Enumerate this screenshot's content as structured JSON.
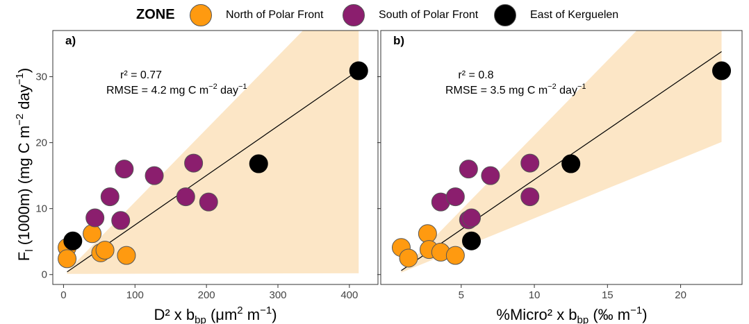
{
  "legend": {
    "title": "ZONE",
    "items": [
      {
        "label": "North of Polar Front",
        "color": "#FF9A10"
      },
      {
        "label": "South of Polar Front",
        "color": "#8B1E6E"
      },
      {
        "label": "East of Kerguelen",
        "color": "#000000"
      }
    ]
  },
  "y_axis": {
    "label_main": "F",
    "label_sub": "l",
    "label_rest": " (1000m) (mg C m",
    "label_exp1": "−2",
    "label_mid": " day",
    "label_exp2": "−1",
    "label_end": ")"
  },
  "band_color": "#FCE6C6",
  "chart_data": [
    {
      "type": "scatter",
      "panel_label": "a)",
      "xlabel": {
        "main": "D² x b",
        "sub": "bp",
        "rest": " (μm",
        "exp1": "2",
        "mid": " m",
        "exp2": "−1",
        "end": ")"
      },
      "xlim": [
        -15,
        440
      ],
      "ylim": [
        -1.5,
        37
      ],
      "xticks": [
        0,
        100,
        200,
        300,
        400
      ],
      "yticks": [
        0,
        10,
        20,
        30
      ],
      "grid": false,
      "annotation": {
        "r2": "r² = 0.77",
        "rmse_prefix": "RMSE = 4.2 mg C m",
        "rmse_exp1": "−2",
        "rmse_mid": " day",
        "rmse_exp2": "−1"
      },
      "fit_line": {
        "x": [
          5,
          413
        ],
        "y": [
          0.4,
          31
        ]
      },
      "band": {
        "upper": [
          [
            5,
            0.5
          ],
          [
            335,
            37
          ],
          [
            413,
            37
          ]
        ],
        "lower": [
          [
            413,
            0.2
          ],
          [
            5,
            0.1
          ]
        ]
      },
      "series": [
        {
          "name": "North of Polar Front",
          "color": "#FF9A10",
          "points": [
            [
              5,
              4.1
            ],
            [
              5,
              2.4
            ],
            [
              40,
              6.2
            ],
            [
              52,
              3.3
            ],
            [
              58,
              3.7
            ],
            [
              88,
              2.9
            ]
          ]
        },
        {
          "name": "South of Polar Front",
          "color": "#8B1E6E",
          "points": [
            [
              44,
              8.6
            ],
            [
              65,
              11.8
            ],
            [
              80,
              8.2
            ],
            [
              85,
              16.0
            ],
            [
              127,
              15.0
            ],
            [
              171,
              11.8
            ],
            [
              182,
              16.9
            ],
            [
              203,
              11.0
            ]
          ]
        },
        {
          "name": "East of Kerguelen",
          "color": "#000000",
          "points": [
            [
              13,
              5.1
            ],
            [
              273,
              16.8
            ],
            [
              413,
              30.9
            ]
          ]
        }
      ]
    },
    {
      "type": "scatter",
      "panel_label": "b)",
      "xlabel": {
        "main": "%Micro² x b",
        "sub": "bp",
        "rest": " (‰ m",
        "exp1": "−1",
        "mid": "",
        "exp2": "",
        "end": ")"
      },
      "xlim": [
        -0.5,
        24.2
      ],
      "ylim": [
        -1.5,
        37
      ],
      "xticks": [
        5,
        10,
        15,
        20
      ],
      "yticks": [
        0,
        10,
        20,
        30
      ],
      "grid": false,
      "annotation": {
        "r2": "r² = 0.8",
        "rmse_prefix": "RMSE = 3.5   mg C m",
        "rmse_exp1": "−2",
        "rmse_mid": " day",
        "rmse_exp2": "−1"
      },
      "fit_line": {
        "x": [
          0.9,
          22.8
        ],
        "y": [
          0.6,
          33.8
        ]
      },
      "band": {
        "upper": [
          [
            0.9,
            0.5
          ],
          [
            17,
            37
          ],
          [
            22.8,
            37
          ]
        ],
        "lower": [
          [
            22.8,
            20.1
          ],
          [
            0.9,
            0.3
          ]
        ]
      },
      "series": [
        {
          "name": "North of Polar Front",
          "color": "#FF9A10",
          "points": [
            [
              0.9,
              4.1
            ],
            [
              1.4,
              2.5
            ],
            [
              2.7,
              6.2
            ],
            [
              2.8,
              3.8
            ],
            [
              3.6,
              3.4
            ],
            [
              4.6,
              2.9
            ]
          ]
        },
        {
          "name": "South of Polar Front",
          "color": "#8B1E6E",
          "points": [
            [
              3.6,
              11.0
            ],
            [
              4.6,
              11.8
            ],
            [
              5.5,
              16.0
            ],
            [
              5.5,
              8.3
            ],
            [
              5.7,
              8.6
            ],
            [
              7.0,
              15.0
            ],
            [
              9.7,
              16.9
            ],
            [
              9.7,
              11.8
            ]
          ]
        },
        {
          "name": "East of Kerguelen",
          "color": "#000000",
          "points": [
            [
              5.7,
              5.1
            ],
            [
              12.5,
              16.8
            ],
            [
              22.8,
              30.9
            ]
          ]
        }
      ]
    }
  ]
}
